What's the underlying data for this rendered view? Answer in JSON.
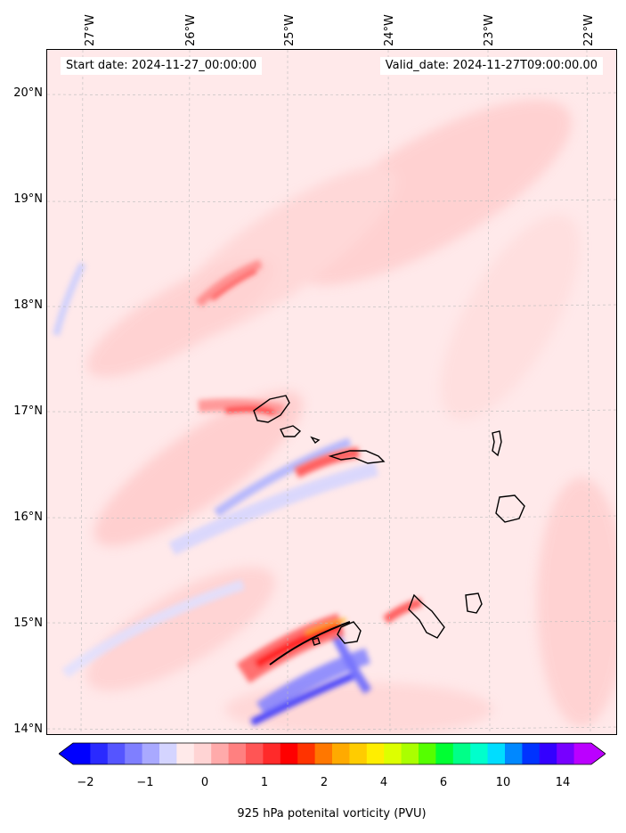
{
  "map": {
    "start_date": "Start date: 2024-11-27_00:00:00",
    "valid_date": "Valid_date: 2024-11-27T09:00:00.00",
    "lon_labels": [
      "27°W",
      "26°W",
      "25°W",
      "24°W",
      "23°W",
      "22°W"
    ],
    "lat_labels": [
      "20°N",
      "19°N",
      "18°N",
      "17°N",
      "16°N",
      "15°N",
      "14°N"
    ],
    "background_color": "#ffe9ea",
    "coastline_color": "#000000",
    "gridline_color": "#bbbbbb"
  },
  "colorbar": {
    "title": "925 hPa potenital vorticity (PVU)",
    "tick_labels": [
      "−2",
      "−1",
      "0",
      "1",
      "2",
      "4",
      "6",
      "10",
      "14"
    ],
    "colors": [
      "#0000ff",
      "#2a2aff",
      "#5555ff",
      "#7f7fff",
      "#a9a9ff",
      "#d4d4ff",
      "#ffeaea",
      "#ffd4d4",
      "#ffaaaa",
      "#ff8080",
      "#ff5555",
      "#ff2a2a",
      "#ff0000",
      "#ff3300",
      "#ff7700",
      "#ffaa00",
      "#ffcc00",
      "#ffee00",
      "#ddff00",
      "#aaff00",
      "#55ff00",
      "#00ff33",
      "#00ff88",
      "#00ffcc",
      "#00ddff",
      "#0088ff",
      "#0033ff",
      "#3300ff",
      "#7700ff",
      "#bb00ff"
    ]
  }
}
